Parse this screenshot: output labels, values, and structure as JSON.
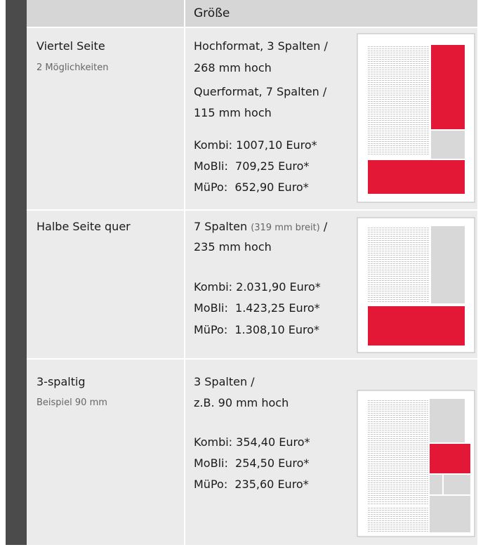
{
  "header": {
    "title": "Größe"
  },
  "rows": [
    {
      "name": "Viertel Seite",
      "note": "2 Möglichkeiten",
      "format": [
        "Hochformat, 3 Spalten /",
        "268 mm hoch",
        "Querformat, 7 Spalten /",
        "115 mm hoch"
      ],
      "prices": [
        "Kombi: 1007,10 Euro*",
        "MoBli:  709,25 Euro*",
        "MüPo:  652,90 Euro*"
      ]
    },
    {
      "name": "Halbe Seite quer",
      "format": [
        [
          "7 Spalten",
          "(319 mm breit)",
          "/"
        ],
        "235 mm hoch"
      ],
      "prices": [
        "Kombi: 2.031,90 Euro*",
        "MoBli:  1.423,25 Euro*",
        "MüPo:  1.308,10 Euro*"
      ]
    },
    {
      "name": "3-spaltig",
      "note": "Beispiel 90 mm",
      "format": [
        "3 Spalten /",
        "z.B. 90 mm hoch"
      ],
      "prices": [
        "Kombi: 354,40 Euro*",
        "MoBli:  254,50 Euro*",
        "MüPo:  235,60 Euro*"
      ]
    }
  ]
}
